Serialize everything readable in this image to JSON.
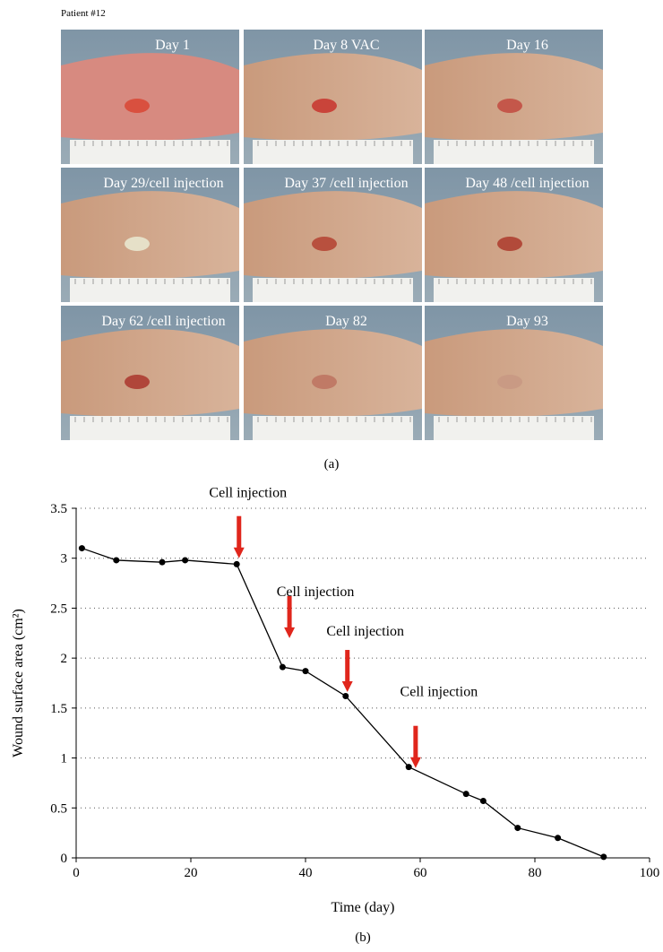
{
  "header": "Patient #12",
  "photos": [
    {
      "label": "Day 1"
    },
    {
      "label": "Day 8 VAC"
    },
    {
      "label": "Day 16"
    },
    {
      "label": "Day 29/cell injection"
    },
    {
      "label": "Day 37 /cell injection"
    },
    {
      "label": "Day 48 /cell injection"
    },
    {
      "label": "Day 62 /cell injection"
    },
    {
      "label": "Day 82"
    },
    {
      "label": "Day 93"
    }
  ],
  "caption_a": "(a)",
  "chart_data": {
    "type": "line",
    "xlabel": "Time (day)",
    "ylabel": "Wound surface area (cm²)",
    "x": [
      1,
      7,
      15,
      19,
      28,
      36,
      40,
      47,
      58,
      68,
      71,
      77,
      84,
      92
    ],
    "series": [
      {
        "color": "#000000",
        "values": [
          3.1,
          2.98,
          2.96,
          2.98,
          2.94,
          1.91,
          1.87,
          1.62,
          0.91,
          0.64,
          0.57,
          0.3,
          0.2,
          0.01
        ]
      }
    ],
    "xlim": [
      0,
      100
    ],
    "ylim": [
      0,
      3.5
    ],
    "xticks": [
      0,
      20,
      40,
      60,
      80,
      100
    ],
    "yticks": [
      0,
      0.5,
      1,
      1.5,
      2,
      2.5,
      3,
      3.5
    ],
    "grid": true,
    "annotations": [
      {
        "text": "Cell injection",
        "x": 28.4,
        "y": 3.0
      },
      {
        "text": "Cell injection",
        "x": 37.2,
        "y": 2.2
      },
      {
        "text": "Cell injection",
        "x": 47.3,
        "y": 1.66
      },
      {
        "text": "Cell injection",
        "x": 59.2,
        "y": 0.9
      }
    ],
    "annotation_color": "#e0261c"
  },
  "caption_b": "(b)"
}
